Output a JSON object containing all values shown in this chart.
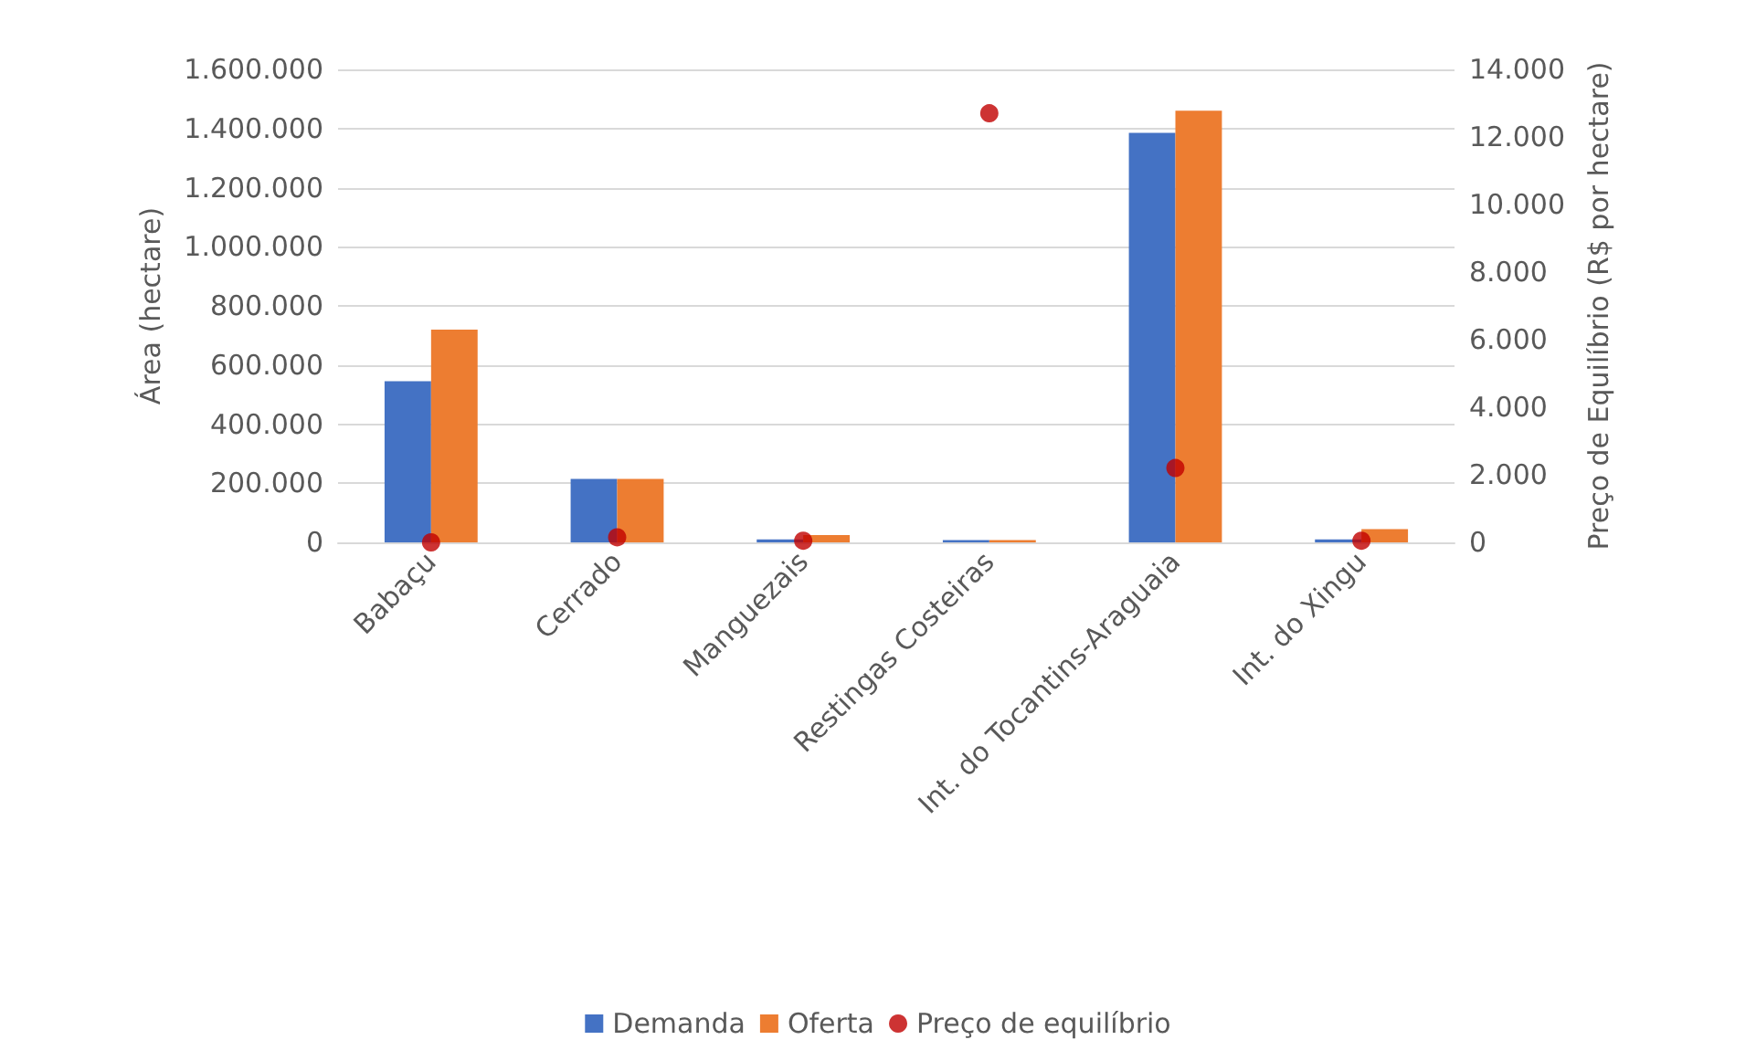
{
  "chart_data": {
    "type": "bar",
    "categories": [
      "Babaçu",
      "Cerrado",
      "Manguezais",
      "Restingas Costeiras",
      "Int. do Tocantins-Araguaia",
      "Int. do Xingu"
    ],
    "ylabel": "Área (hectare)",
    "y2label": "Preço de Equilíbrio (R$ por hectare)",
    "series": [
      {
        "name": "Demanda",
        "color": "#4472c4",
        "values": [
          545000,
          215000,
          10000,
          8000,
          1385000,
          10000
        ]
      },
      {
        "name": "Oferta",
        "color": "#ed7d31",
        "values": [
          720000,
          215000,
          25000,
          8000,
          1460000,
          45000
        ]
      },
      {
        "name": "Preço de equilíbrio",
        "type": "scatter",
        "axis": "y2",
        "marker": "circle",
        "color": "#c00000",
        "values": [
          0,
          150,
          50,
          12700,
          2200,
          50
        ]
      }
    ],
    "ylim": [
      0,
      1600000
    ],
    "yticks": [
      {
        "value": 0,
        "label": "0"
      },
      {
        "value": 200000,
        "label": "200.000"
      },
      {
        "value": 400000,
        "label": "400.000"
      },
      {
        "value": 600000,
        "label": "600.000"
      },
      {
        "value": 800000,
        "label": "800.000"
      },
      {
        "value": 1000000,
        "label": "1.000.000"
      },
      {
        "value": 1200000,
        "label": "1.200.000"
      },
      {
        "value": 1400000,
        "label": "1.400.000"
      },
      {
        "value": 1600000,
        "label": "1.600.000"
      }
    ],
    "y2lim": [
      0,
      14000
    ],
    "y2ticks": [
      {
        "value": 0,
        "label": "0"
      },
      {
        "value": 2000,
        "label": "2.000"
      },
      {
        "value": 4000,
        "label": "4.000"
      },
      {
        "value": 6000,
        "label": "6.000"
      },
      {
        "value": 8000,
        "label": "8.000"
      },
      {
        "value": 10000,
        "label": "10.000"
      },
      {
        "value": 12000,
        "label": "12.000"
      },
      {
        "value": 14000,
        "label": "14.000"
      }
    ],
    "grid": "y",
    "legend": "bottom"
  }
}
